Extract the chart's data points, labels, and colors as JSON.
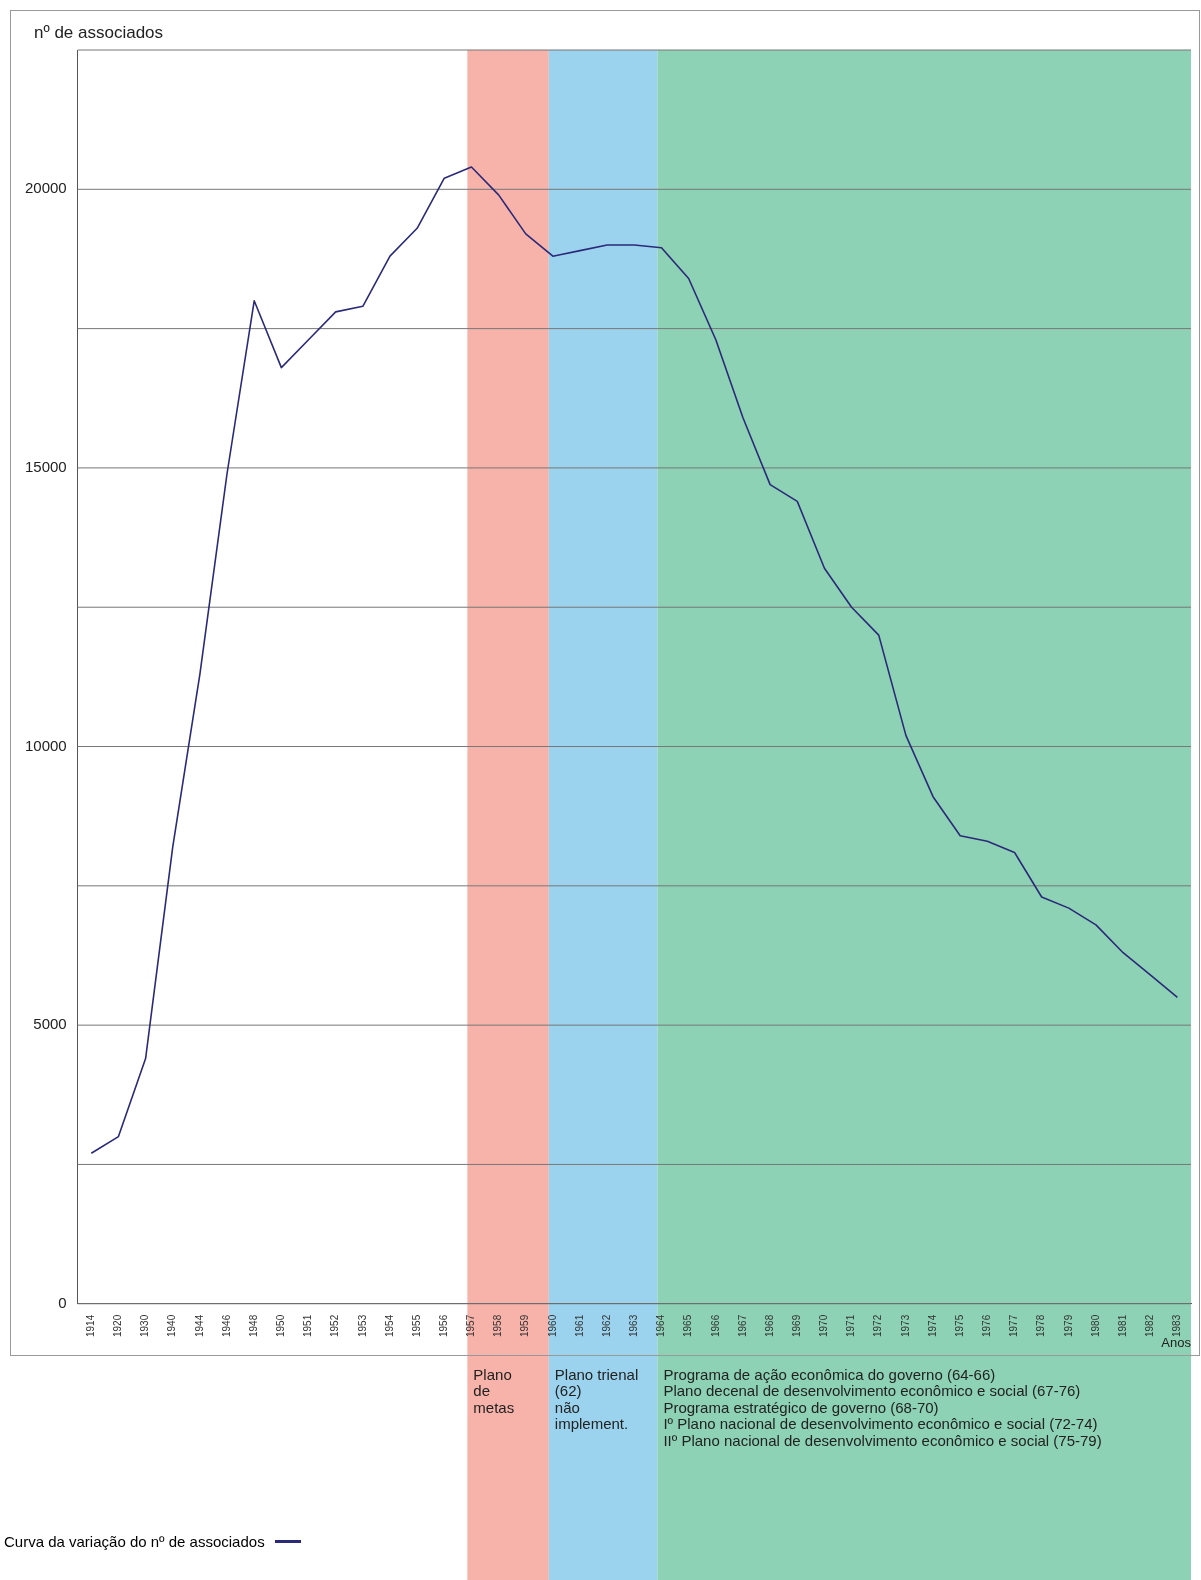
{
  "chart_data": {
    "type": "line",
    "ylabel": "nº de associados",
    "xlabel": "Anos",
    "categories": [
      "1914",
      "1920",
      "1930",
      "1940",
      "1944",
      "1946",
      "1948",
      "1950",
      "1951",
      "1952",
      "1953",
      "1954",
      "1955",
      "1956",
      "1957",
      "1958",
      "1959",
      "1960",
      "1961",
      "1962",
      "1963",
      "1964",
      "1965",
      "1966",
      "1967",
      "1968",
      "1969",
      "1970",
      "1971",
      "1972",
      "1973",
      "1974",
      "1975",
      "1976",
      "1977",
      "1978",
      "1979",
      "1980",
      "1981",
      "1982",
      "1983"
    ],
    "series": [
      {
        "name": "Curva da variação do nº de associados",
        "color": "#2b2a78",
        "values": [
          2700,
          3000,
          4400,
          8200,
          11300,
          14900,
          18000,
          16800,
          17300,
          17800,
          17900,
          18800,
          19300,
          20200,
          20400,
          19900,
          19200,
          18800,
          18900,
          19000,
          19000,
          18950,
          18400,
          17300,
          15900,
          14700,
          14400,
          13200,
          12500,
          12000,
          10200,
          9100,
          8400,
          8300,
          8100,
          7300,
          7100,
          6800,
          6300,
          5900,
          5500
        ]
      }
    ],
    "ylim": [
      0,
      22500
    ],
    "yticks": [
      0,
      {
        "value": 2500,
        "label": null
      },
      5000,
      {
        "value": 7500,
        "label": null
      },
      10000,
      {
        "value": 12500,
        "label": null
      },
      15000,
      {
        "value": 17500,
        "label": null
      },
      20000,
      {
        "value": 22500,
        "label": null
      }
    ],
    "bands": [
      {
        "axis": "x",
        "from": "1957",
        "to": "1960",
        "label": "Plano\nde\nmetas",
        "color": "#f7b3aa"
      },
      {
        "axis": "x",
        "from": "1960",
        "to": "1964",
        "label": "Plano trienal\n(62)\nnão\nimplement.",
        "color": "#9bd3ee"
      },
      {
        "axis": "x",
        "from": "1964",
        "to": "1983",
        "label": "Programa de ação econômica do governo (64-66)\nPlano decenal de desenvolvimento econômico e social (67-76)\nPrograma estratégico de governo (68-70)\nIº Plano nacional de desenvolvimento econômico e social (72-74)\nIIº Plano nacional de desenvolvimento econômico e social (75-79)",
        "color": "#8ed2b6"
      }
    ],
    "grid": "y",
    "legend": "bottom left",
    "marker": "none",
    "line_style": "solid"
  }
}
